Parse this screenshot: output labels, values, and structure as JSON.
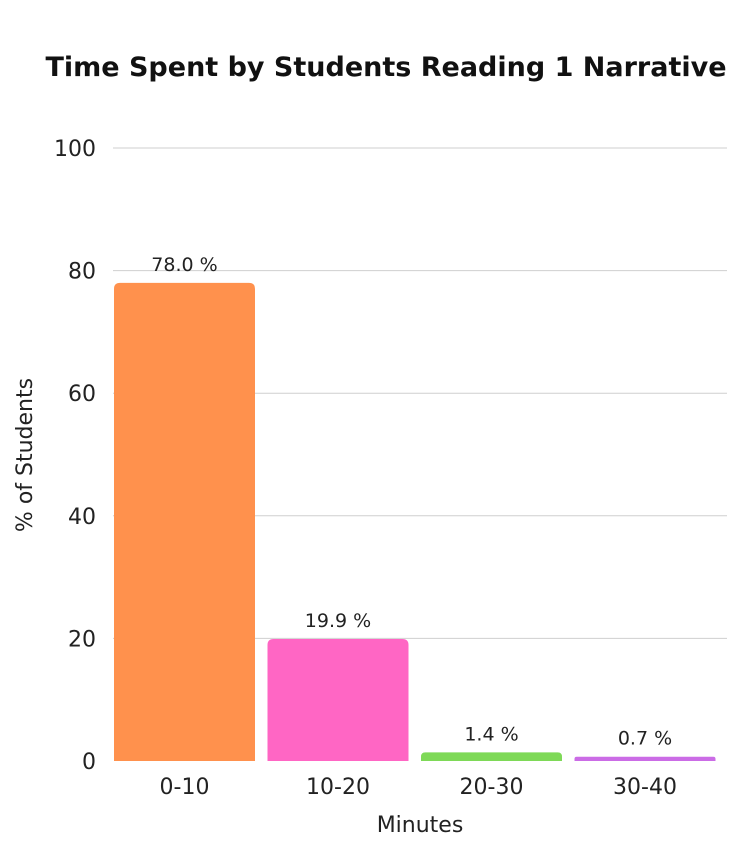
{
  "chart_data": {
    "type": "bar",
    "title": "Time Spent by Students Reading 1 Narrative",
    "xlabel": "Minutes",
    "ylabel": "% of Students",
    "categories": [
      "0-10",
      "10-20",
      "20-30",
      "30-40"
    ],
    "values": [
      78.0,
      19.9,
      1.4,
      0.7
    ],
    "data_labels": [
      "78.0 %",
      "19.9 %",
      "1.4 %",
      "0.7 %"
    ],
    "colors": [
      "#FF914D",
      "#FF66C4",
      "#7ED957",
      "#CB6CE6"
    ],
    "ylim": [
      0,
      100
    ],
    "yticks": [
      0,
      20,
      40,
      60,
      80,
      100
    ],
    "grid": true,
    "legend": "none"
  }
}
